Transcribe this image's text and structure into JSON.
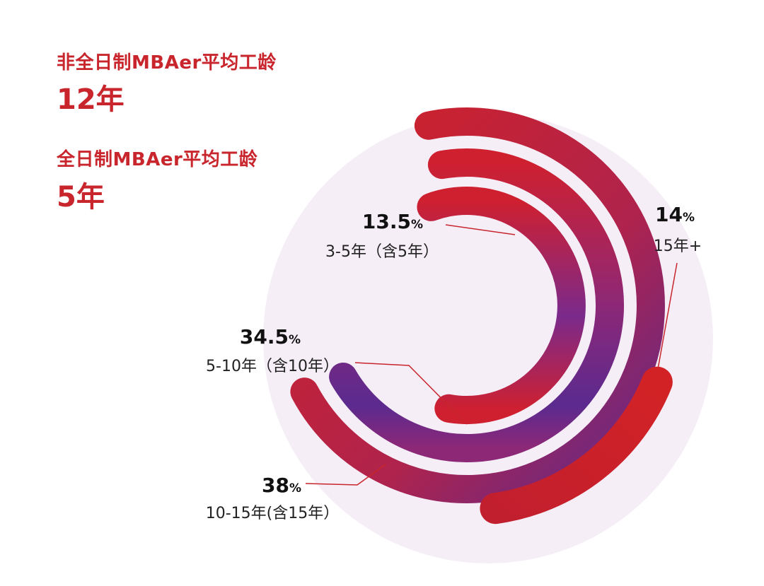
{
  "stats": {
    "parttime_label": "非全日制MBAer平均工龄",
    "parttime_value": "12年",
    "fulltime_label": "全日制MBAer平均工龄",
    "fulltime_value": "5年"
  },
  "chart_data": {
    "type": "radial-bar",
    "title": "",
    "unit": "%",
    "series": [
      {
        "name": "3-5年（含5年）",
        "value": 13.5,
        "value_label": "13.5"
      },
      {
        "name": "5-10年（含10年）",
        "value": 34.5,
        "value_label": "34.5"
      },
      {
        "name": "10-15年(含15年）",
        "value": 38,
        "value_label": "38"
      },
      {
        "name": "15年+",
        "value": 14,
        "value_label": "14"
      }
    ]
  },
  "colors": {
    "brand_red": "#c8252c",
    "arc_red": "#cf2030",
    "arc_purple": "#5b2a8f",
    "background_circle": "#f6eef7",
    "leader_line": "#c8252c"
  }
}
